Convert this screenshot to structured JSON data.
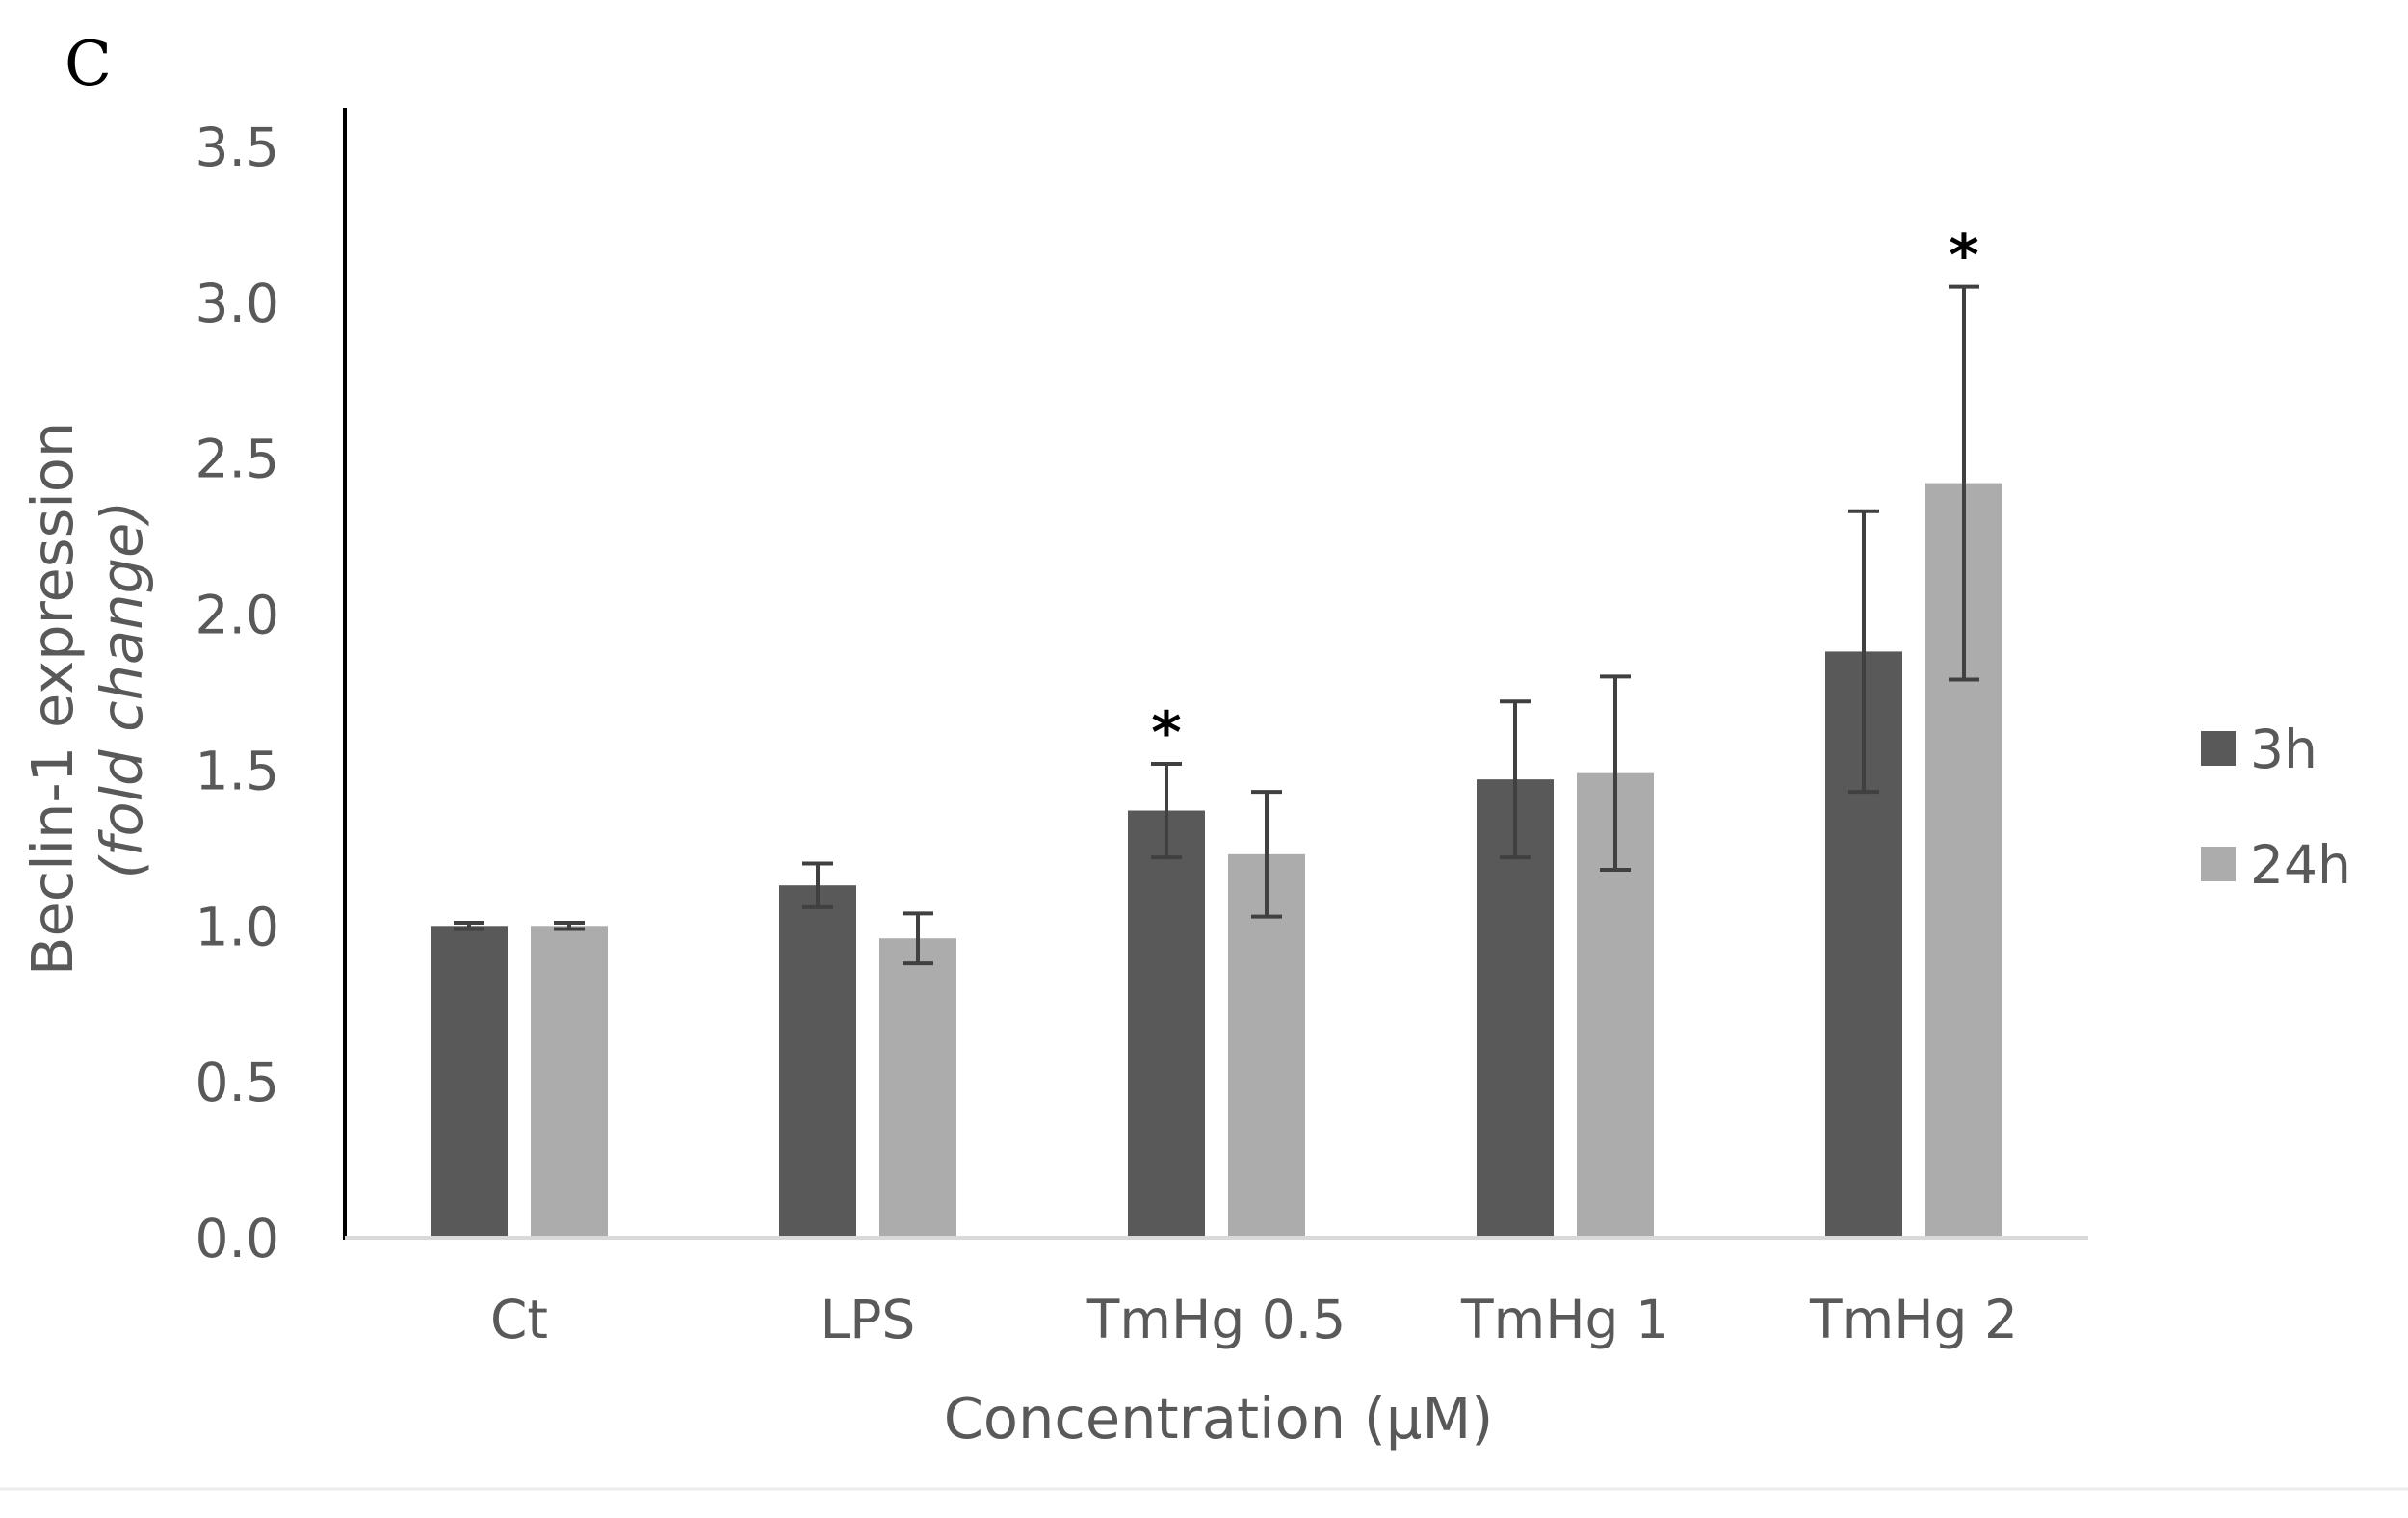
{
  "panel_label": "C",
  "chart_data": {
    "type": "bar",
    "xlabel": "Concentration (µM)",
    "ylabel_main": "Beclin-1 expression",
    "ylabel_italic": "(fold change)",
    "ylim": [
      0,
      3.5
    ],
    "yticks": [
      "0.0",
      "0.5",
      "1.0",
      "1.5",
      "2.0",
      "2.5",
      "3.0",
      "3.5"
    ],
    "categories": [
      "Ct",
      "LPS",
      "TmHg 0.5",
      "TmHg 1",
      "TmHg 2"
    ],
    "series": [
      {
        "name": "3h",
        "color": "#595959",
        "values": [
          1.0,
          1.13,
          1.37,
          1.47,
          1.88
        ],
        "errors": [
          0.01,
          0.07,
          0.15,
          0.25,
          0.45
        ],
        "significant": [
          false,
          false,
          true,
          false,
          false
        ]
      },
      {
        "name": "24h",
        "color": "#acacac",
        "values": [
          1.0,
          0.96,
          1.23,
          1.49,
          2.42
        ],
        "errors": [
          0.01,
          0.08,
          0.2,
          0.31,
          0.63
        ],
        "significant": [
          false,
          false,
          false,
          false,
          true
        ]
      }
    ],
    "significance_marker": "*",
    "legend_position": "right",
    "grid": false,
    "axis_color": "#000000",
    "baseline_color": "#d9d9d9",
    "text_color": "#595959",
    "errorbar_color": "#404040"
  }
}
